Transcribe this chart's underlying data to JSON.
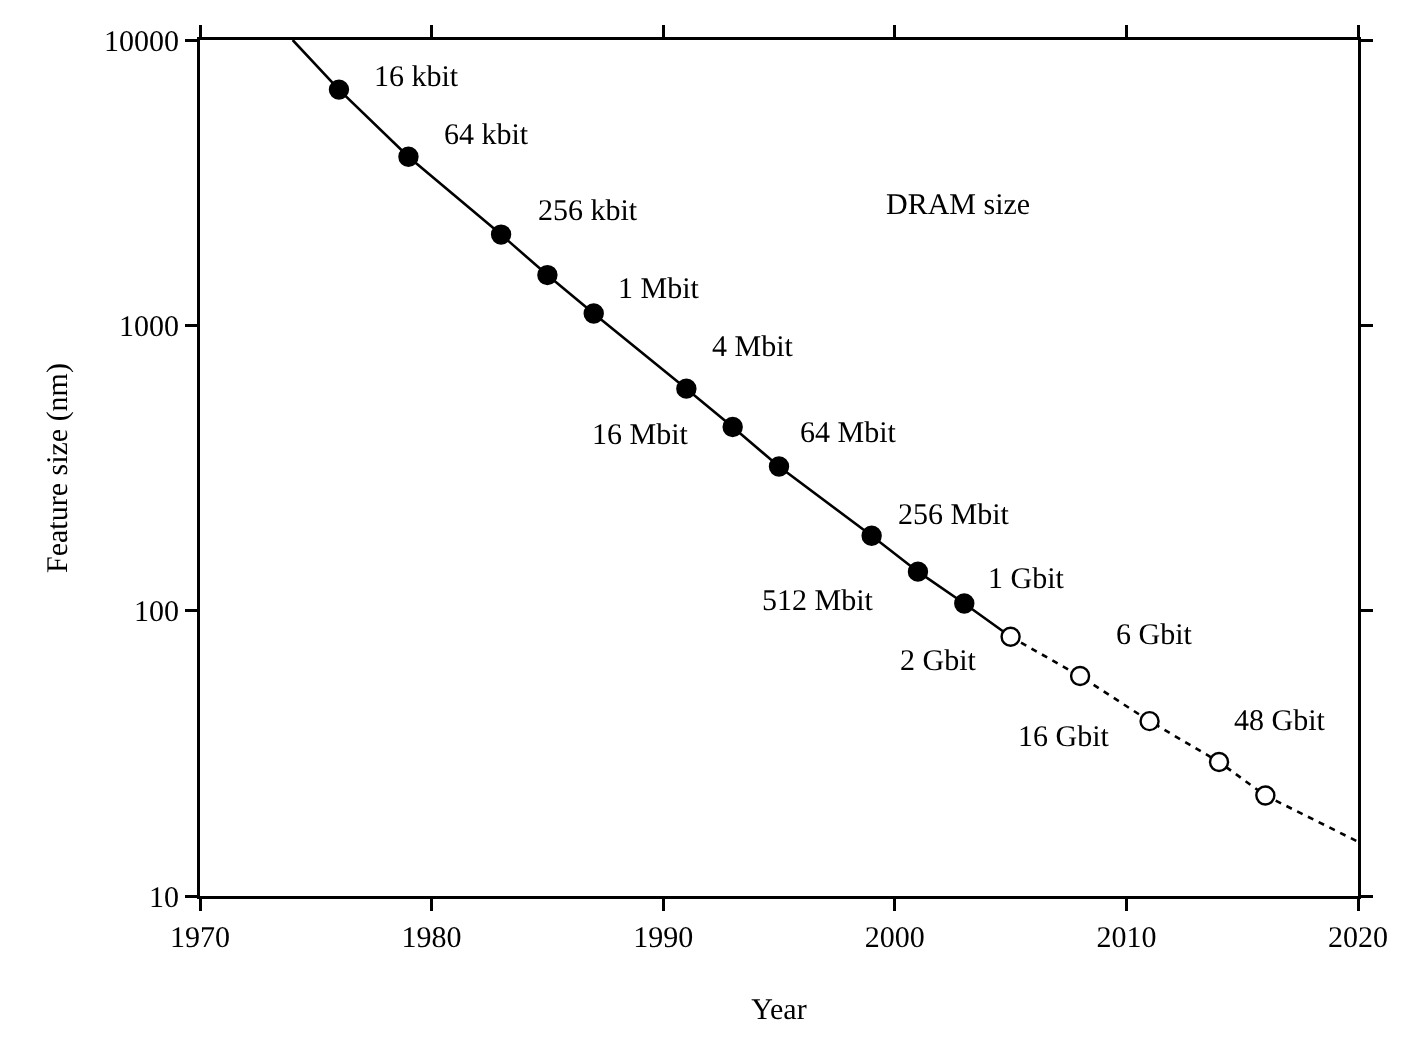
{
  "chart_data": {
    "type": "scatter",
    "xlabel": "Year",
    "ylabel": "Feature size (nm)",
    "log": "y",
    "grid": false,
    "marker": "circle",
    "xlim": [
      1970,
      2020
    ],
    "xticks": [
      1970,
      1980,
      1990,
      2000,
      2010,
      2020
    ],
    "ylim": [
      10,
      10000
    ],
    "yticks": [
      10,
      100,
      1000,
      10000
    ],
    "series": [
      {
        "type": "line",
        "color": "#000000",
        "line_style": "solid",
        "marker": "none",
        "x": [
          1974,
          1976,
          1979,
          1983,
          1985,
          1987,
          1991,
          1993,
          1995,
          1999,
          2001,
          2003,
          2005
        ],
        "values": [
          10000,
          6700,
          3900,
          2080,
          1500,
          1100,
          600,
          440,
          320,
          183,
          137,
          106,
          81
        ]
      },
      {
        "type": "line",
        "color": "#000000",
        "line_style": "dotted",
        "marker": "none",
        "x": [
          2005,
          2008,
          2011,
          2014,
          2016,
          2020
        ],
        "values": [
          81,
          59,
          41,
          29.5,
          22.5,
          15.5
        ]
      },
      {
        "color": "#000000",
        "x": [
          1976,
          1979,
          1983,
          1985,
          1987,
          1991,
          1993,
          1995,
          1999,
          2001,
          2003
        ],
        "values": [
          6700,
          3900,
          2080,
          1500,
          1100,
          600,
          440,
          320,
          183,
          137,
          106
        ]
      },
      {
        "color": "#ffffff",
        "x": [
          2005,
          2008,
          2011,
          2014,
          2016
        ],
        "values": [
          81,
          59,
          41,
          29.5,
          22.5
        ]
      }
    ],
    "annotations": [
      "DRAM size",
      {
        "text": "16 kbit",
        "x": 1976,
        "y": 6700
      },
      {
        "text": "64 kbit",
        "x": 1979,
        "y": 3900
      },
      {
        "text": "256 kbit",
        "x": 1983,
        "y": 2080
      },
      {
        "text": "1 Mbit",
        "x": 1987,
        "y": 1100
      },
      {
        "text": "4 Mbit",
        "x": 1991,
        "y": 600
      },
      {
        "text": "16 Mbit",
        "x": 1993,
        "y": 440
      },
      {
        "text": "64 Mbit",
        "x": 1995,
        "y": 320
      },
      {
        "text": "256 Mbit",
        "x": 1999,
        "y": 183
      },
      {
        "text": "512 Mbit",
        "x": 2001,
        "y": 137
      },
      {
        "text": "1 Gbit",
        "x": 2003,
        "y": 106
      },
      {
        "text": "2 Gbit",
        "x": 2005,
        "y": 81
      },
      {
        "text": "6 Gbit",
        "x": 2008,
        "y": 59
      },
      {
        "text": "16 Gbit",
        "x": 2011,
        "y": 41
      },
      {
        "text": "48 Gbit",
        "x": 2014,
        "y": 29.5
      }
    ]
  }
}
